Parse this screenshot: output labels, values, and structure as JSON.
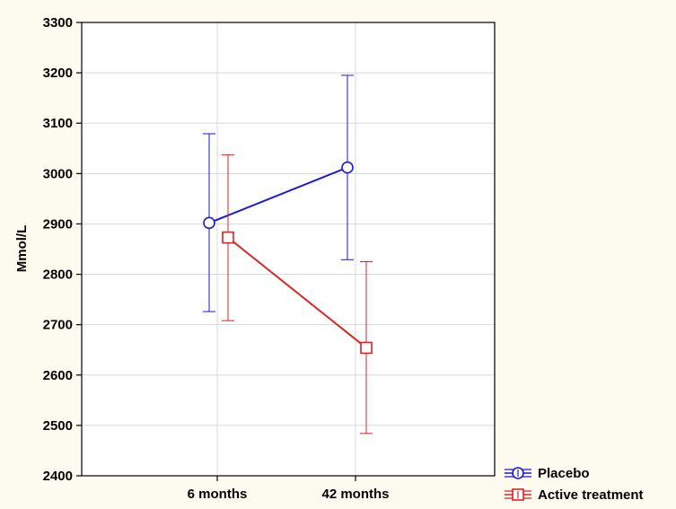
{
  "chart_data": {
    "type": "line",
    "categories": [
      "6 months",
      "42 months"
    ],
    "ylabel": "Mmol/L",
    "xlabel": "",
    "ylim": [
      2400,
      3300
    ],
    "yticks": [
      2400,
      2500,
      2600,
      2700,
      2800,
      2900,
      3000,
      3100,
      3200,
      3300
    ],
    "grid": true,
    "legend_position": "bottom-right",
    "series": [
      {
        "name": "Placebo",
        "marker": "circle",
        "color": "#1a1ad0",
        "values": [
          2902,
          3012
        ],
        "error_low": [
          2726,
          2829
        ],
        "error_high": [
          3079,
          3195
        ]
      },
      {
        "name": "Active treatment",
        "marker": "square",
        "color": "#e02020",
        "values": [
          2873,
          2654
        ],
        "error_low": [
          2708,
          2484
        ],
        "error_high": [
          3037,
          2825
        ]
      }
    ]
  }
}
